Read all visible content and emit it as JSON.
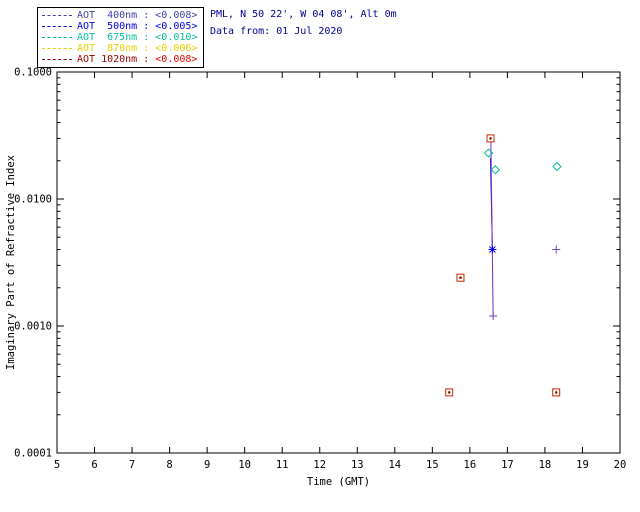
{
  "header": {
    "site_line": "PML, N 50 22', W 04 08', Alt 0m",
    "date_line": "Data from: 01 Jul 2020",
    "text_color": "#000090"
  },
  "legend": {
    "border_color": "#000000",
    "items": [
      {
        "label": "AOT  400nm : ",
        "value": "<0.008>",
        "color": "#3F3FA8",
        "value_color": "#3F3FA8"
      },
      {
        "label": "AOT  500nm : ",
        "value": "<0.005>",
        "color": "#0000EE",
        "value_color": "#0000EE"
      },
      {
        "label": "AOT  675nm : ",
        "value": "<0.010>",
        "color": "#00BF9F",
        "value_color": "#00BF9F"
      },
      {
        "label": "AOT  870nm : ",
        "value": "<0.006>",
        "color": "#E8D000",
        "value_color": "#E8D000"
      },
      {
        "label": "AOT 1020nm : ",
        "value": "<0.008>",
        "color": "#990000",
        "value_color": "#EE0000"
      }
    ]
  },
  "chart_data": {
    "type": "scatter",
    "title": "",
    "xlabel": "Time (GMT)",
    "ylabel": "Imaginary Part of Refractive Index",
    "x_range": [
      5,
      20
    ],
    "x_ticks": [
      5,
      6,
      7,
      8,
      9,
      10,
      11,
      12,
      13,
      14,
      15,
      16,
      17,
      18,
      19,
      20
    ],
    "y_scale": "log",
    "y_range": [
      0.0001,
      0.1
    ],
    "y_ticks": [
      {
        "v": 0.1,
        "label": "0.1000"
      },
      {
        "v": 0.01,
        "label": "0.0100"
      },
      {
        "v": 0.001,
        "label": "0.0010"
      },
      {
        "v": 0.0001,
        "label": "0.0001"
      }
    ],
    "grid": false,
    "legend_position": "top-left",
    "series": [
      {
        "name": "AOT 400nm",
        "marker": "plus",
        "color": "#6A3FC8",
        "points": [
          [
            16.62,
            0.0012
          ],
          [
            18.3,
            0.004
          ]
        ]
      },
      {
        "name": "AOT 500nm",
        "marker": "asterisk",
        "color": "#0000EE",
        "points": [
          [
            16.6,
            0.004
          ]
        ]
      },
      {
        "name": "AOT 675nm",
        "marker": "diamond",
        "color": "#00BF9F",
        "points": [
          [
            16.5,
            0.023
          ],
          [
            16.68,
            0.017
          ],
          [
            18.32,
            0.018
          ]
        ]
      },
      {
        "name": "AOT 870nm",
        "marker": "cross",
        "color": "#E8D000",
        "points": []
      },
      {
        "name": "AOT 1020nm",
        "marker": "square-dot",
        "color": "#CC2200",
        "points": [
          [
            15.45,
            0.0003
          ],
          [
            15.75,
            0.0024
          ],
          [
            16.55,
            0.03
          ],
          [
            18.3,
            0.0003
          ]
        ]
      }
    ],
    "lines": [
      {
        "color": "#000090",
        "points": [
          [
            16.55,
            0.021
          ],
          [
            16.6,
            0.004
          ]
        ]
      },
      {
        "color": "#7D26CD",
        "points": [
          [
            16.56,
            0.028
          ],
          [
            16.62,
            0.0012
          ]
        ]
      }
    ]
  }
}
